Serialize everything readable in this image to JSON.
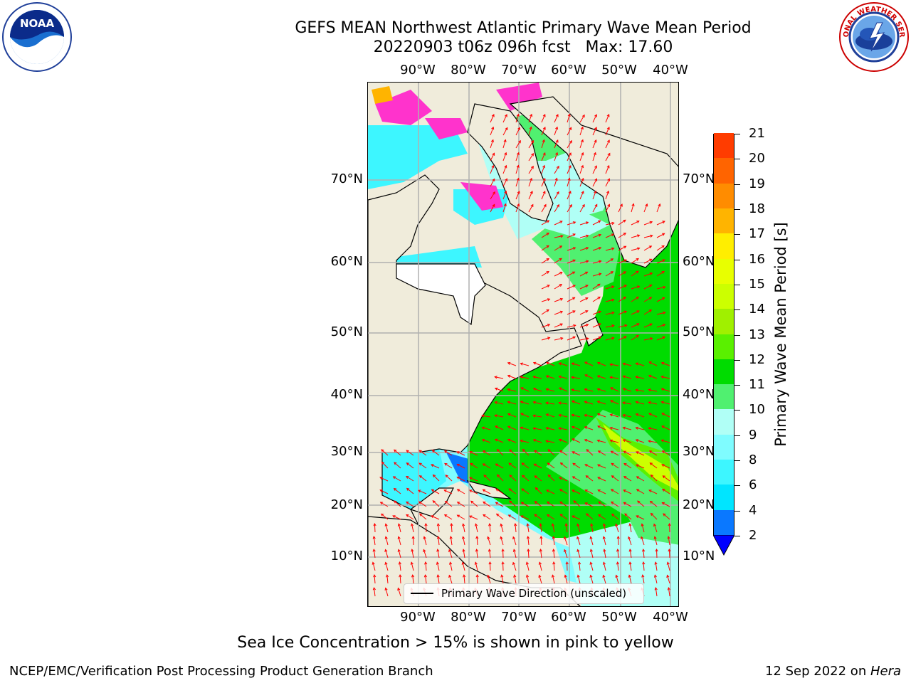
{
  "title_line1": "GEFS MEAN Northwest Atlantic Primary Wave Mean Period",
  "title_line2": "20220903 t06z 096h fcst   Max: 17.60",
  "logos": {
    "left": {
      "name": "noaa-logo",
      "text": "NOAA",
      "ring_text": "NATIONAL OCEANIC AND ATMOSPHERIC ADMINISTRATION · U.S. DEPARTMENT OF COMMERCE"
    },
    "right": {
      "name": "nws-logo",
      "ring_text": "NATIONAL WEATHER SERVICE"
    }
  },
  "map": {
    "lon_labels": [
      "90°W",
      "80°W",
      "70°W",
      "60°W",
      "50°W",
      "40°W"
    ],
    "lat_labels": [
      "70°N",
      "60°N",
      "50°N",
      "40°N",
      "30°N",
      "20°N",
      "10°N"
    ],
    "land_color": "#f0ecdb",
    "legend_label": "Primary Wave Direction (unscaled)",
    "arrow_color": "#ff0000"
  },
  "colorbar": {
    "label": "Primary Wave Mean Period [s]",
    "ticks": [
      "2",
      "4",
      "6",
      "8",
      "9",
      "10",
      "11",
      "12",
      "13",
      "14",
      "15",
      "16",
      "17",
      "18",
      "19",
      "20",
      "21"
    ],
    "colors": [
      "#0a78ff",
      "#00e5ff",
      "#3df6ff",
      "#7ffcff",
      "#b0fff6",
      "#50f070",
      "#00dc00",
      "#5af000",
      "#a0f000",
      "#ccff00",
      "#e8ff00",
      "#ffee00",
      "#ffb400",
      "#ff8c00",
      "#ff6400",
      "#ff3c00",
      "#ff0000"
    ],
    "extend_color": "#0000ff"
  },
  "note": "Sea Ice Concentration > 15% is shown in pink to yellow",
  "credit": "NCEP/EMC/Verification Post Processing Product Generation Branch",
  "date": "12 Sep 2022 on ",
  "date_host": "Hera"
}
